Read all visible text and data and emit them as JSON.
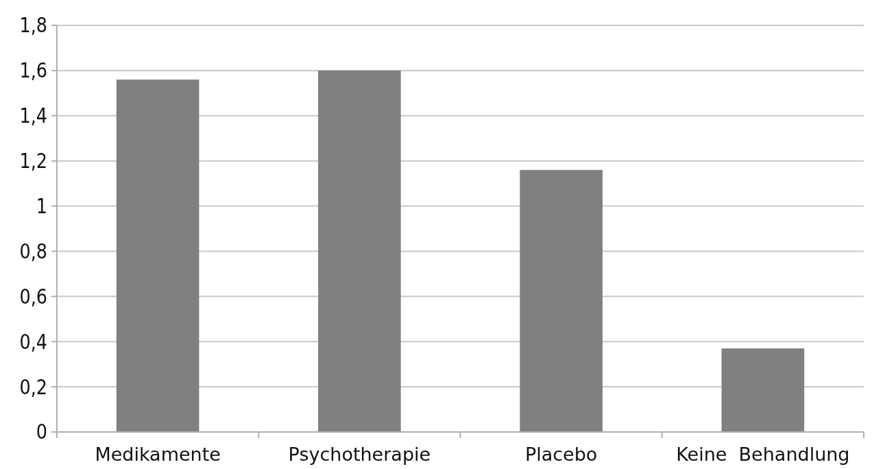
{
  "chart_data": {
    "type": "bar",
    "categories": [
      "Medikamente",
      "Psychotherapie",
      "Placebo",
      "Keine  Behandlung"
    ],
    "values": [
      1.56,
      1.6,
      1.16,
      0.37
    ],
    "color": "#808080",
    "ylim": [
      0,
      1.8
    ],
    "yticks": [
      {
        "value": 0,
        "label": "0"
      },
      {
        "value": 0.2,
        "label": "0,2"
      },
      {
        "value": 0.4,
        "label": "0,4"
      },
      {
        "value": 0.6,
        "label": "0,6"
      },
      {
        "value": 0.8,
        "label": "0,8"
      },
      {
        "value": 1,
        "label": "1"
      },
      {
        "value": 1.2,
        "label": "1,2"
      },
      {
        "value": 1.4,
        "label": "1,4"
      },
      {
        "value": 1.6,
        "label": "1,6"
      },
      {
        "value": 1.8,
        "label": "1,8"
      }
    ],
    "grid": "y"
  }
}
